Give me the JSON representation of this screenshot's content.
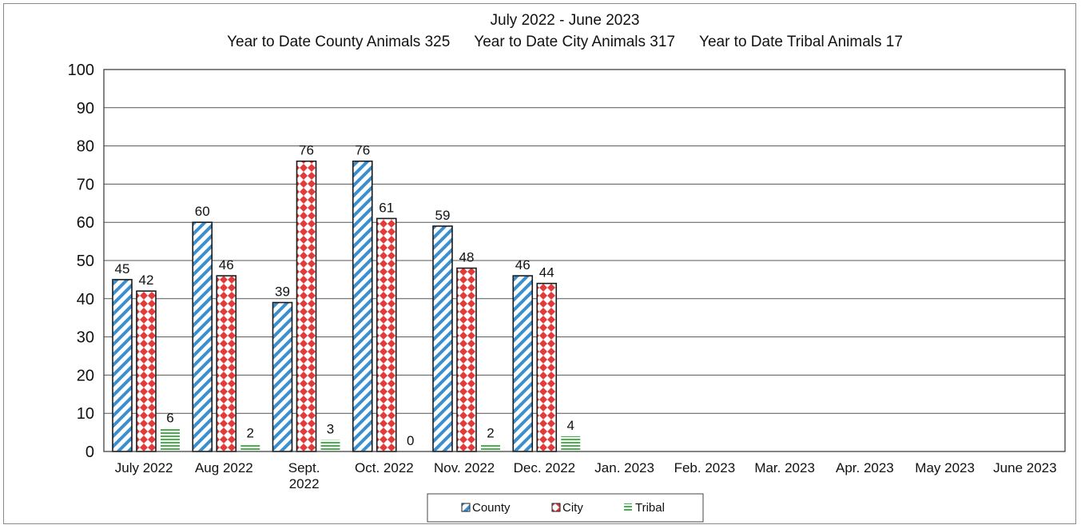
{
  "chart_data": {
    "type": "bar",
    "title": "July 2022 - June 2023",
    "subtitle_items": [
      "Year to Date County Animals 325",
      "Year to Date City Animals 317",
      "Year to Date Tribal Animals  17"
    ],
    "categories": [
      [
        "July 2022"
      ],
      [
        "Aug 2022"
      ],
      [
        "Sept.",
        "2022"
      ],
      [
        "Oct. 2022"
      ],
      [
        "Nov. 2022"
      ],
      [
        "Dec. 2022"
      ],
      [
        "Jan. 2023"
      ],
      [
        "Feb. 2023"
      ],
      [
        "Mar. 2023"
      ],
      [
        "Apr. 2023"
      ],
      [
        "May 2023"
      ],
      [
        "June 2023"
      ]
    ],
    "series": [
      {
        "name": "County",
        "color": "#3a8fd0",
        "pattern": "diagonal-stripes",
        "values": [
          45,
          60,
          39,
          76,
          59,
          46,
          null,
          null,
          null,
          null,
          null,
          null
        ]
      },
      {
        "name": "City",
        "color": "#e23b3b",
        "pattern": "diamonds",
        "values": [
          42,
          46,
          76,
          61,
          48,
          44,
          null,
          null,
          null,
          null,
          null,
          null
        ]
      },
      {
        "name": "Tribal",
        "color": "#4caf50",
        "pattern": "horizontal-stripes",
        "values": [
          6,
          2,
          3,
          0,
          2,
          4,
          null,
          null,
          null,
          null,
          null,
          null
        ]
      }
    ],
    "yticks": [
      "0",
      "10",
      "20",
      "30",
      "40",
      "50",
      "60",
      "70",
      "80",
      "90",
      "100"
    ],
    "ylim": [
      0,
      100
    ],
    "grid": true,
    "legend_position": "bottom-center",
    "data_labels": true
  }
}
